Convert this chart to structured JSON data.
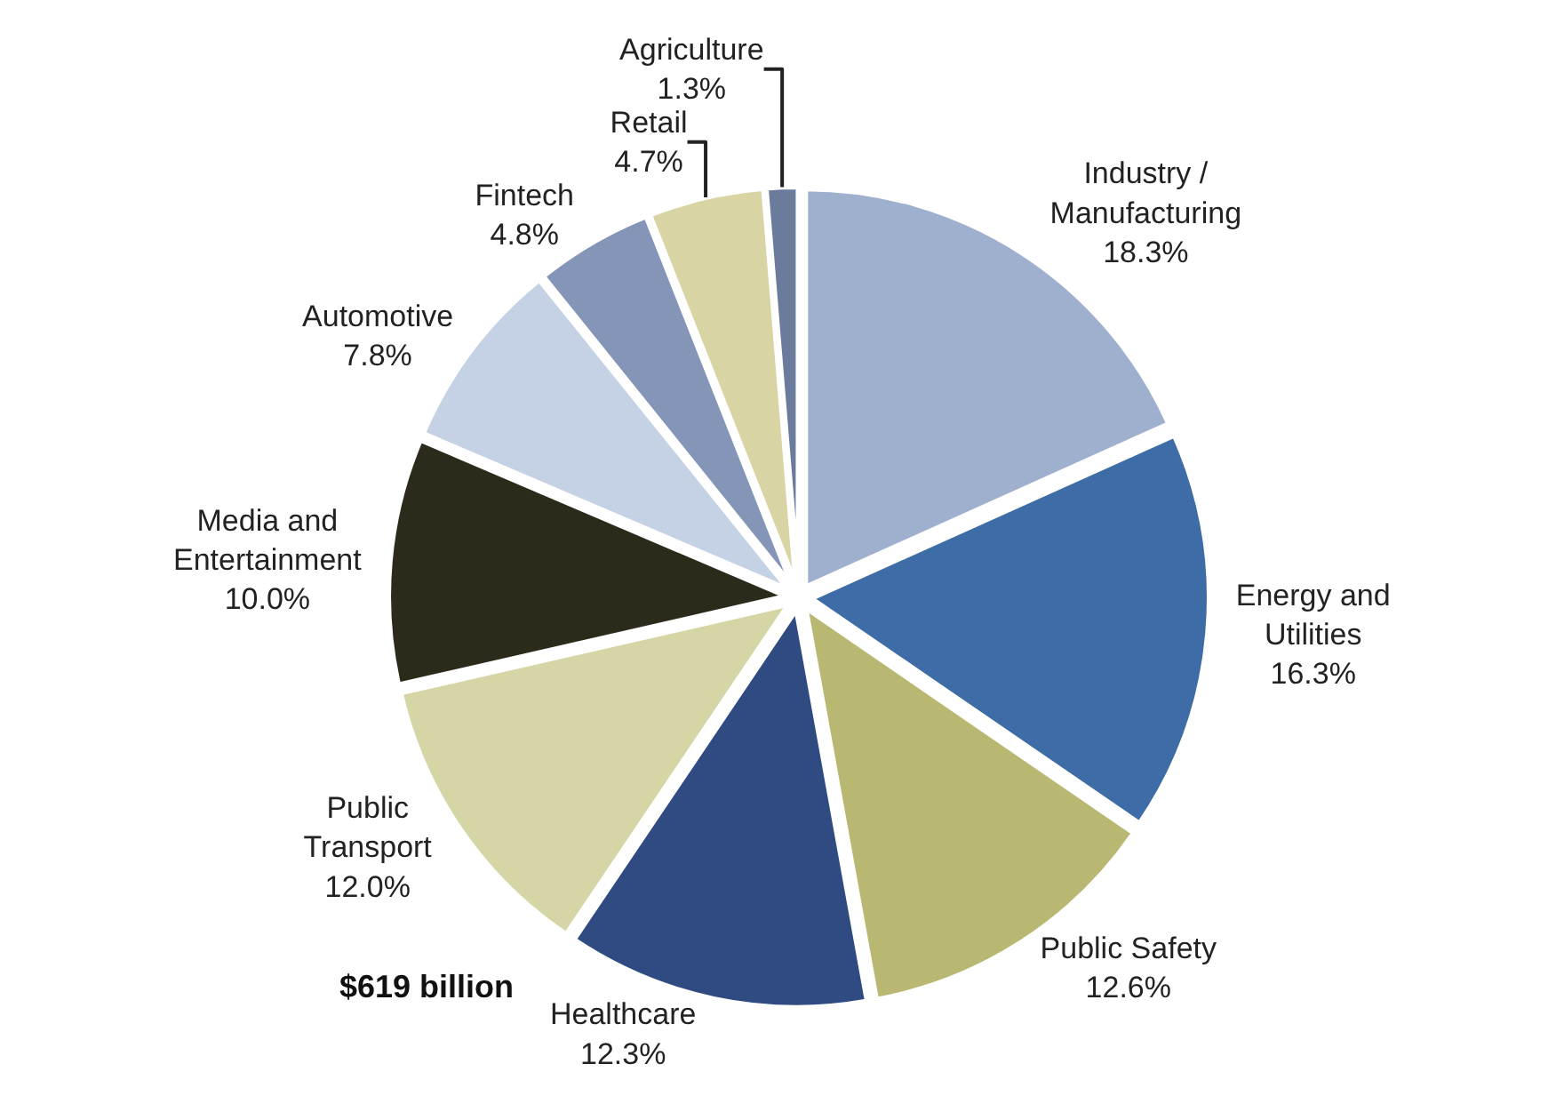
{
  "chart_data": {
    "type": "pie",
    "categories": [
      "Industry / Manufacturing",
      "Energy and Utilities",
      "Public Safety",
      "Healthcare",
      "Public Transport",
      "Media and Entertainment",
      "Automotive",
      "Fintech",
      "Retail",
      "Agriculture"
    ],
    "values": [
      18.3,
      16.3,
      12.6,
      12.3,
      12.0,
      10.0,
      7.8,
      4.8,
      4.7,
      1.3
    ],
    "value_labels": [
      "18.3%",
      "16.3%",
      "12.6%",
      "12.3%",
      "12.0%",
      "10.0%",
      "7.8%",
      "4.8%",
      "4.7%",
      "1.3%"
    ],
    "colors": [
      "#9fb0cf",
      "#3d6ca6",
      "#b9b872",
      "#2f4b82",
      "#d6d5a6",
      "#2c2b1b",
      "#c5d1e5",
      "#8595b7",
      "#d9d4a3",
      "#6b7b9b"
    ],
    "annotations": [
      "$619 billion"
    ],
    "legend": false
  }
}
